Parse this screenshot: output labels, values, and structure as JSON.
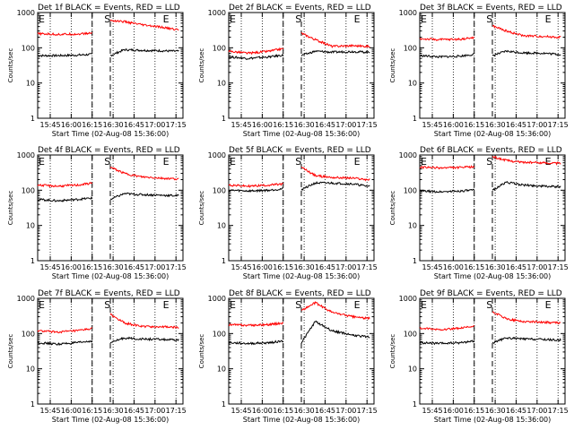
{
  "chart_data": [
    {
      "type": "line",
      "title": "Det 1f BLACK = Events, RED = LLD",
      "xlabel": "Start Time (02-Aug-08 15:36:00)",
      "ylabel": "Counts/sec",
      "yscale": "log",
      "ylim": [
        1,
        1000
      ],
      "x_ticks": [
        "15:45",
        "16:00",
        "16:15",
        "16:30",
        "16:45",
        "17:00",
        "17:15"
      ],
      "y_ticks": [
        "1",
        "10",
        "100",
        "1000"
      ],
      "markers": [
        {
          "label": "E",
          "time": "15:36"
        },
        {
          "label": "S",
          "time": "16:23"
        },
        {
          "label": "E",
          "time": "17:05"
        }
      ],
      "series": [
        {
          "name": "Events",
          "color": "#000000",
          "x": [
            "15:36",
            "15:50",
            "16:05",
            "16:15",
            "16:28",
            "16:38",
            "16:50",
            "17:05",
            "17:15"
          ],
          "y": [
            60,
            60,
            62,
            65,
            60,
            88,
            85,
            82,
            80
          ]
        },
        {
          "name": "LLD",
          "color": "#ff0000",
          "x": [
            "15:36",
            "15:50",
            "16:05",
            "16:15",
            "16:28",
            "16:38",
            "16:50",
            "17:05",
            "17:15"
          ],
          "y": [
            250,
            240,
            245,
            260,
            600,
            550,
            450,
            380,
            330
          ]
        }
      ]
    },
    {
      "type": "line",
      "title": "Det 2f BLACK = Events, RED = LLD",
      "xlabel": "Start Time (02-Aug-08 15:36:00)",
      "ylabel": "Counts/sec",
      "yscale": "log",
      "ylim": [
        1,
        1000
      ],
      "x_ticks": [
        "15:45",
        "16:00",
        "16:15",
        "16:30",
        "16:45",
        "17:00",
        "17:15"
      ],
      "y_ticks": [
        "1",
        "10",
        "100",
        "1000"
      ],
      "markers": [
        {
          "label": "E",
          "time": "15:36"
        },
        {
          "label": "S",
          "time": "16:23"
        },
        {
          "label": "E",
          "time": "17:05"
        }
      ],
      "series": [
        {
          "name": "Events",
          "color": "#000000",
          "x": [
            "15:36",
            "15:50",
            "16:05",
            "16:15",
            "16:28",
            "16:38",
            "16:50",
            "17:05",
            "17:15"
          ],
          "y": [
            55,
            50,
            55,
            62,
            60,
            80,
            75,
            78,
            75
          ]
        },
        {
          "name": "LLD",
          "color": "#ff0000",
          "x": [
            "15:36",
            "15:50",
            "16:05",
            "16:15",
            "16:28",
            "16:38",
            "16:50",
            "17:05",
            "17:15"
          ],
          "y": [
            80,
            70,
            80,
            95,
            260,
            170,
            110,
            115,
            110
          ]
        }
      ]
    },
    {
      "type": "line",
      "title": "Det 3f BLACK = Events, RED = LLD",
      "xlabel": "Start Time (02-Aug-08 15:36:00)",
      "ylabel": "Counts/sec",
      "yscale": "log",
      "ylim": [
        1,
        1000
      ],
      "x_ticks": [
        "15:45",
        "16:00",
        "16:15",
        "16:30",
        "16:45",
        "17:00",
        "17:15"
      ],
      "y_ticks": [
        "1",
        "10",
        "100",
        "1000"
      ],
      "markers": [
        {
          "label": "E",
          "time": "15:36"
        },
        {
          "label": "S",
          "time": "16:23"
        },
        {
          "label": "E",
          "time": "17:05"
        }
      ],
      "series": [
        {
          "name": "Events",
          "color": "#000000",
          "x": [
            "15:36",
            "15:50",
            "16:05",
            "16:15",
            "16:28",
            "16:38",
            "16:50",
            "17:05",
            "17:15"
          ],
          "y": [
            60,
            55,
            58,
            65,
            60,
            80,
            72,
            70,
            65
          ]
        },
        {
          "name": "LLD",
          "color": "#ff0000",
          "x": [
            "15:36",
            "15:50",
            "16:05",
            "16:15",
            "16:28",
            "16:38",
            "16:50",
            "17:05",
            "17:15"
          ],
          "y": [
            180,
            170,
            175,
            195,
            420,
            300,
            220,
            210,
            200
          ]
        }
      ]
    },
    {
      "type": "line",
      "title": "Det 4f BLACK = Events, RED = LLD",
      "xlabel": "Start Time (02-Aug-08 15:36:00)",
      "ylabel": "Counts/sec",
      "yscale": "log",
      "ylim": [
        1,
        1000
      ],
      "x_ticks": [
        "15:45",
        "16:00",
        "16:15",
        "16:30",
        "16:45",
        "17:00",
        "17:15"
      ],
      "y_ticks": [
        "1",
        "10",
        "100",
        "1000"
      ],
      "markers": [
        {
          "label": "E",
          "time": "15:36"
        },
        {
          "label": "S",
          "time": "16:23"
        },
        {
          "label": "E",
          "time": "17:05"
        }
      ],
      "series": [
        {
          "name": "Events",
          "color": "#000000",
          "x": [
            "15:36",
            "15:50",
            "16:05",
            "16:15",
            "16:28",
            "16:38",
            "16:50",
            "17:05",
            "17:15"
          ],
          "y": [
            55,
            50,
            55,
            60,
            55,
            80,
            75,
            72,
            70
          ]
        },
        {
          "name": "LLD",
          "color": "#ff0000",
          "x": [
            "15:36",
            "15:50",
            "16:05",
            "16:15",
            "16:28",
            "16:38",
            "16:50",
            "17:05",
            "17:15"
          ],
          "y": [
            140,
            130,
            140,
            160,
            450,
            300,
            240,
            220,
            210
          ]
        }
      ]
    },
    {
      "type": "line",
      "title": "Det 5f BLACK = Events, RED = LLD",
      "xlabel": "Start Time (02-Aug-08 15:36:00)",
      "ylabel": "Counts/sec",
      "yscale": "log",
      "ylim": [
        1,
        1000
      ],
      "x_ticks": [
        "15:45",
        "16:00",
        "16:15",
        "16:30",
        "16:45",
        "17:00",
        "17:15"
      ],
      "y_ticks": [
        "1",
        "10",
        "100",
        "1000"
      ],
      "markers": [
        {
          "label": "E",
          "time": "15:36"
        },
        {
          "label": "S",
          "time": "16:23"
        },
        {
          "label": "E",
          "time": "17:05"
        }
      ],
      "series": [
        {
          "name": "Events",
          "color": "#000000",
          "x": [
            "15:36",
            "15:50",
            "16:05",
            "16:15",
            "16:28",
            "16:38",
            "16:50",
            "17:05",
            "17:15"
          ],
          "y": [
            100,
            95,
            100,
            110,
            105,
            160,
            160,
            150,
            130
          ]
        },
        {
          "name": "LLD",
          "color": "#ff0000",
          "x": [
            "15:36",
            "15:50",
            "16:05",
            "16:15",
            "16:28",
            "16:38",
            "16:50",
            "17:05",
            "17:15"
          ],
          "y": [
            140,
            130,
            140,
            150,
            450,
            260,
            230,
            220,
            200
          ]
        }
      ]
    },
    {
      "type": "line",
      "title": "Det 6f BLACK = Events, RED = LLD",
      "xlabel": "Start Time (02-Aug-08 15:36:00)",
      "ylabel": "Counts/sec",
      "yscale": "log",
      "ylim": [
        1,
        1000
      ],
      "x_ticks": [
        "15:45",
        "16:00",
        "16:15",
        "16:30",
        "16:45",
        "17:00",
        "17:15"
      ],
      "y_ticks": [
        "1",
        "10",
        "100",
        "1000"
      ],
      "markers": [
        {
          "label": "E",
          "time": "15:36"
        },
        {
          "label": "S",
          "time": "16:23"
        },
        {
          "label": "E",
          "time": "17:05"
        }
      ],
      "series": [
        {
          "name": "Events",
          "color": "#000000",
          "x": [
            "15:36",
            "15:50",
            "16:05",
            "16:15",
            "16:28",
            "16:38",
            "16:50",
            "17:05",
            "17:15"
          ],
          "y": [
            95,
            90,
            95,
            100,
            100,
            170,
            140,
            130,
            125
          ]
        },
        {
          "name": "LLD",
          "color": "#ff0000",
          "x": [
            "15:36",
            "15:50",
            "16:05",
            "16:15",
            "16:28",
            "16:38",
            "16:50",
            "17:05",
            "17:15"
          ],
          "y": [
            450,
            430,
            440,
            460,
            900,
            700,
            620,
            600,
            580
          ]
        }
      ]
    },
    {
      "type": "line",
      "title": "Det 7f BLACK = Events, RED = LLD",
      "xlabel": "Start Time (02-Aug-08 15:36:00)",
      "ylabel": "Counts/sec",
      "yscale": "log",
      "ylim": [
        1,
        1000
      ],
      "x_ticks": [
        "15:45",
        "16:00",
        "16:15",
        "16:30",
        "16:45",
        "17:00",
        "17:15"
      ],
      "y_ticks": [
        "1",
        "10",
        "100",
        "1000"
      ],
      "markers": [
        {
          "label": "E",
          "time": "15:36"
        },
        {
          "label": "S",
          "time": "16:23"
        },
        {
          "label": "E",
          "time": "17:05"
        }
      ],
      "series": [
        {
          "name": "Events",
          "color": "#000000",
          "x": [
            "15:36",
            "15:50",
            "16:05",
            "16:15",
            "16:28",
            "16:38",
            "16:50",
            "17:05",
            "17:15"
          ],
          "y": [
            55,
            50,
            55,
            62,
            55,
            75,
            70,
            68,
            65
          ]
        },
        {
          "name": "LLD",
          "color": "#ff0000",
          "x": [
            "15:36",
            "15:50",
            "16:05",
            "16:15",
            "16:28",
            "16:38",
            "16:50",
            "17:05",
            "17:15"
          ],
          "y": [
            120,
            110,
            120,
            140,
            350,
            200,
            160,
            155,
            150
          ]
        }
      ]
    },
    {
      "type": "line",
      "title": "Det 8f BLACK = Events, RED = LLD",
      "xlabel": "Start Time (02-Aug-08 15:36:00)",
      "ylabel": "Counts/sec",
      "yscale": "log",
      "ylim": [
        1,
        1000
      ],
      "x_ticks": [
        "15:45",
        "16:00",
        "16:15",
        "16:30",
        "16:45",
        "17:00",
        "17:15"
      ],
      "y_ticks": [
        "1",
        "10",
        "100",
        "1000"
      ],
      "markers": [
        {
          "label": "E",
          "time": "15:36"
        },
        {
          "label": "S",
          "time": "16:23"
        },
        {
          "label": "E",
          "time": "17:05"
        }
      ],
      "series": [
        {
          "name": "Events",
          "color": "#000000",
          "x": [
            "15:36",
            "15:50",
            "16:05",
            "16:15",
            "16:28",
            "16:38",
            "16:50",
            "17:05",
            "17:15"
          ],
          "y": [
            55,
            52,
            55,
            62,
            55,
            220,
            120,
            90,
            80
          ]
        },
        {
          "name": "LLD",
          "color": "#ff0000",
          "x": [
            "15:36",
            "15:50",
            "16:05",
            "16:15",
            "16:28",
            "16:38",
            "16:50",
            "17:05",
            "17:15"
          ],
          "y": [
            180,
            170,
            180,
            200,
            450,
            750,
            400,
            300,
            270
          ]
        }
      ]
    },
    {
      "type": "line",
      "title": "Det 9f BLACK = Events, RED = LLD",
      "xlabel": "Start Time (02-Aug-08 15:36:00)",
      "ylabel": "Counts/sec",
      "yscale": "log",
      "ylim": [
        1,
        1000
      ],
      "x_ticks": [
        "15:45",
        "16:00",
        "16:15",
        "16:30",
        "16:45",
        "17:00",
        "17:15"
      ],
      "y_ticks": [
        "1",
        "10",
        "100",
        "1000"
      ],
      "markers": [
        {
          "label": "E",
          "time": "15:36"
        },
        {
          "label": "S",
          "time": "16:23"
        },
        {
          "label": "E",
          "time": "17:05"
        }
      ],
      "series": [
        {
          "name": "Events",
          "color": "#000000",
          "x": [
            "15:36",
            "15:50",
            "16:05",
            "16:15",
            "16:28",
            "16:38",
            "16:50",
            "17:05",
            "17:15"
          ],
          "y": [
            55,
            52,
            55,
            62,
            55,
            75,
            70,
            68,
            65
          ]
        },
        {
          "name": "LLD",
          "color": "#ff0000",
          "x": [
            "15:36",
            "15:50",
            "16:05",
            "16:15",
            "16:28",
            "16:38",
            "16:50",
            "17:05",
            "17:15"
          ],
          "y": [
            140,
            130,
            140,
            160,
            420,
            260,
            220,
            210,
            200
          ]
        }
      ]
    }
  ]
}
